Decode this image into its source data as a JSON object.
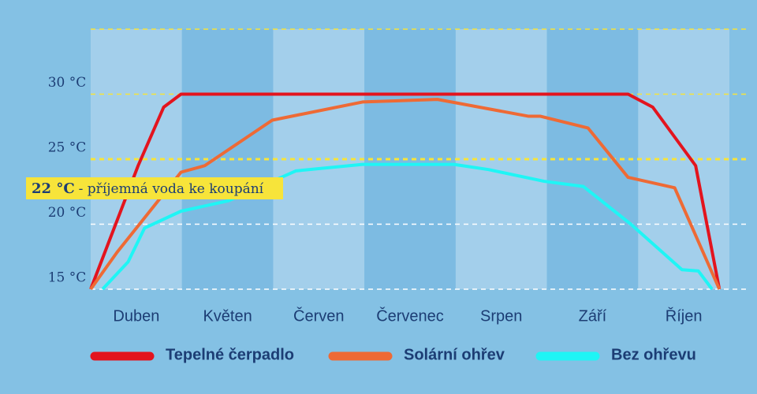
{
  "chart_data": {
    "type": "line",
    "categories": [
      "Duben",
      "Květen",
      "Červen",
      "Červenec",
      "Srpen",
      "Září",
      "Říjen"
    ],
    "xlim": [
      0,
      7
    ],
    "ylim": [
      15,
      35
    ],
    "yticks": [
      {
        "value": 15,
        "label": "15 °C"
      },
      {
        "value": 20,
        "label": "20 °C"
      },
      {
        "value": 25,
        "label": "25 °C"
      },
      {
        "value": 30,
        "label": "30 °C"
      }
    ],
    "grid": true,
    "annotation": {
      "label": "22 °C",
      "text": "- příjemná voda ke koupání"
    },
    "series": [
      {
        "name": "Tepelné čerpadlo",
        "color": "#e3141e",
        "x": [
          0,
          0.52,
          0.8,
          0.99,
          5.89,
          6.16,
          6.63,
          6.89
        ],
        "values": [
          15,
          24.5,
          29,
          30,
          30,
          29,
          24.5,
          15
        ]
      },
      {
        "name": "Solární ohřev",
        "color": "#ee6a35",
        "x": [
          0,
          0.29,
          0.99,
          1.25,
          1.99,
          2.98,
          3.8,
          4.8,
          4.93,
          5.45,
          5.89,
          6.4,
          6.89
        ],
        "values": [
          15,
          17.85,
          24,
          24.5,
          28,
          29.4,
          29.6,
          28.3,
          28.3,
          27.4,
          23.6,
          22.8,
          15
        ]
      },
      {
        "name": "Bez ohřevu",
        "color": "#1ff5f5",
        "x": [
          0.13,
          0.41,
          0.59,
          0.99,
          1.51,
          2.25,
          2.98,
          3.98,
          4.36,
          4.97,
          5.4,
          5.92,
          6.48,
          6.66,
          6.81
        ],
        "values": [
          15,
          17.1,
          19.7,
          21,
          21.8,
          24.1,
          24.6,
          24.6,
          24.2,
          23.3,
          22.9,
          20,
          16.5,
          16.4,
          15
        ]
      }
    ]
  }
}
